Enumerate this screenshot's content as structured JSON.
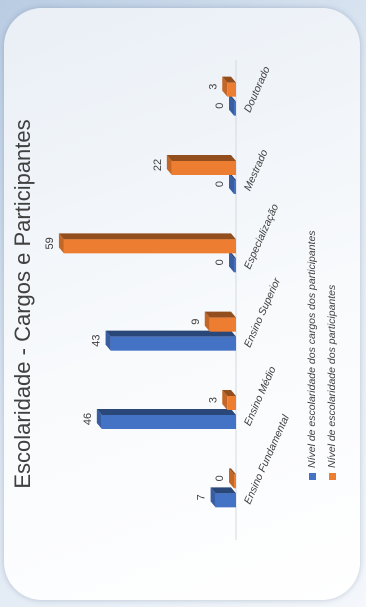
{
  "chart_data": {
    "type": "bar",
    "title": "Escolaridade - Cargos e Participantes",
    "categories": [
      "Ensino Fundamental",
      "Ensino Médio",
      "Ensino Superior",
      "Especialização",
      "Mestrado",
      "Doutorado"
    ],
    "series": [
      {
        "name": "Nível de escolaridade dos cargos dos participantes",
        "values": [
          7,
          46,
          43,
          0,
          0,
          0
        ],
        "color": "#4472c4"
      },
      {
        "name": "Nível de escolaridade dos participantes",
        "values": [
          0,
          3,
          9,
          59,
          22,
          3
        ],
        "color": "#ed7d31"
      }
    ],
    "ylim": [
      0,
      60
    ],
    "grid": false,
    "legend_position": "bottom",
    "data_labels": true
  }
}
